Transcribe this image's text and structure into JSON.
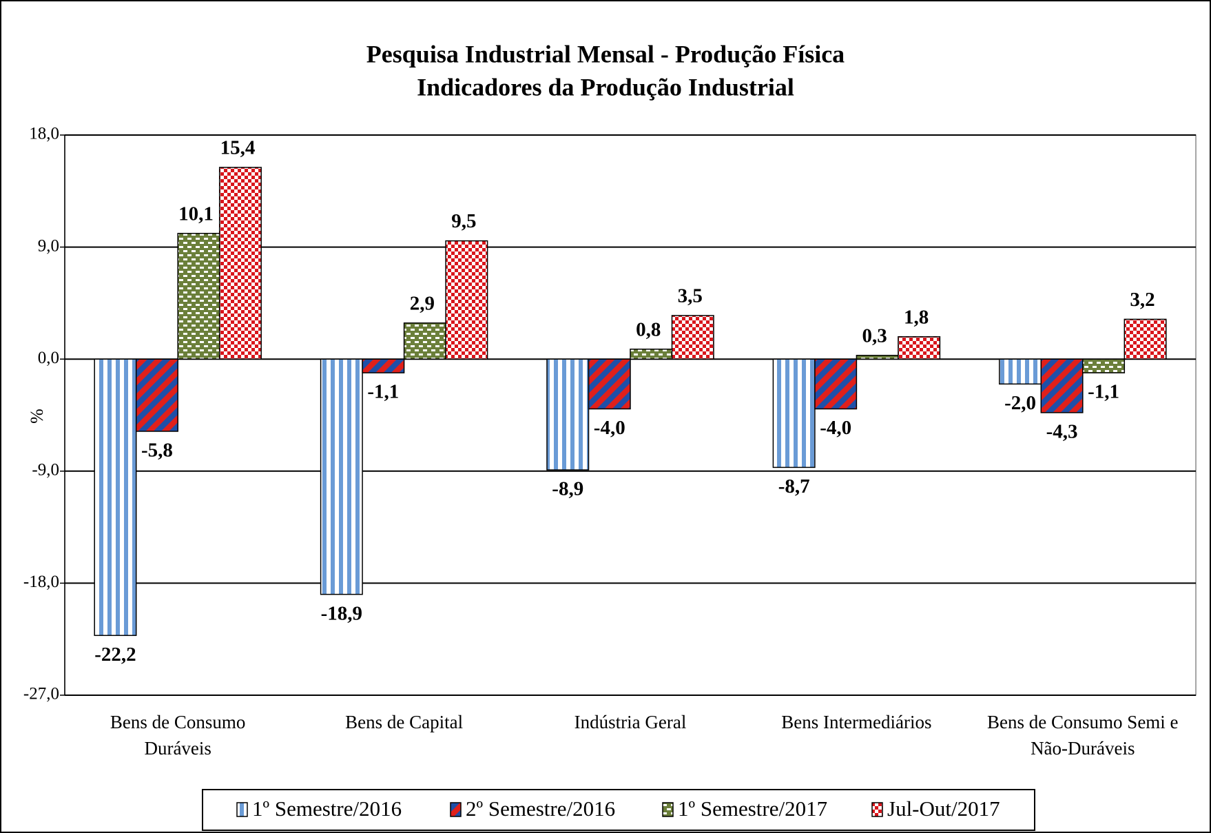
{
  "chart_data": {
    "type": "bar",
    "title": "Pesquisa Industrial Mensal - Produção Física",
    "subtitle": "Indicadores da Produção Industrial",
    "y_label": "%",
    "categories": [
      "Bens de Consumo Duráveis",
      "Bens de Capital",
      "Indústria Geral",
      "Bens Intermediários",
      "Bens de Consumo Semi e Não-Duráveis"
    ],
    "series": [
      {
        "name": "1º Semestre/2016",
        "color": "#6a9bd6",
        "pattern": "vertical-stripes",
        "values": [
          -22.2,
          -18.9,
          -8.9,
          -8.7,
          -2.0
        ],
        "value_labels": [
          "-22,2",
          "-18,9",
          "-8,9",
          "-8,7",
          "-2,0"
        ]
      },
      {
        "name": "2º Semestre/2016",
        "color": "#e0201b",
        "pattern": "diagonal-stripes",
        "values": [
          -5.8,
          -1.1,
          -4.0,
          -4.0,
          -4.3
        ],
        "value_labels": [
          "-5,8",
          "-1,1",
          "-4,0",
          "-4,0",
          "-4,3"
        ]
      },
      {
        "name": "1º Semestre/2017",
        "color": "#6b7f3a",
        "pattern": "dashes",
        "values": [
          10.1,
          2.9,
          0.8,
          0.3,
          -1.1
        ],
        "value_labels": [
          "10,1",
          "2,9",
          "0,8",
          "0,3",
          "-1,1"
        ]
      },
      {
        "name": "Jul-Out/2017",
        "color": "#d9161c",
        "pattern": "checker",
        "values": [
          15.4,
          9.5,
          3.5,
          1.8,
          3.2
        ],
        "value_labels": [
          "15,4",
          "9,5",
          "3,5",
          "1,8",
          "3,2"
        ]
      }
    ],
    "ylim": [
      -27,
      18
    ],
    "yticks": [
      {
        "value": -27,
        "label": "-27,0"
      },
      {
        "value": -18,
        "label": "-18,0"
      },
      {
        "value": -9,
        "label": "-9,0"
      },
      {
        "value": 0,
        "label": "0,0"
      },
      {
        "value": 9,
        "label": "9,0"
      },
      {
        "value": 18,
        "label": "18,0"
      }
    ],
    "grid": true,
    "legend": "bottom"
  }
}
